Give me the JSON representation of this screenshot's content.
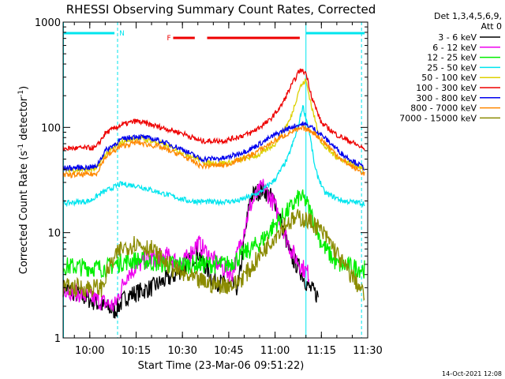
{
  "chart_data": {
    "type": "line",
    "title": "RHESSI Observing Summary Count Rates, Corrected",
    "xlabel": "Start Time (23-Mar-06 09:51:22)",
    "ylabel_main": "Corrected Count Rate (s",
    "ylabel_sup1": "-1",
    "ylabel_mid": " detector",
    "ylabel_sup2": "-1",
    "ylabel_end": ")",
    "y_scale": "log",
    "ylim": [
      1,
      1000
    ],
    "xlim": [
      "09:51:22",
      "11:30:00"
    ],
    "x_ticks": [
      "10:00",
      "10:15",
      "10:30",
      "10:45",
      "11:00",
      "11:15",
      "11:30"
    ],
    "y_ticks": [
      "1",
      "10",
      "100",
      "1000"
    ],
    "legend_header": [
      "Det 1,3,4,5,6,9,",
      "Att 0"
    ],
    "legend_position": "right",
    "timestamp": "14-Oct-2021 12:08",
    "status_bars": [
      {
        "label": "N",
        "color": "#00e5ee",
        "segments": [
          [
            "09:51:22",
            "10:08"
          ],
          [
            "11:10",
            "11:29"
          ]
        ]
      },
      {
        "label": "F",
        "color": "#ee0000",
        "segments": [
          [
            "10:27",
            "10:34"
          ],
          [
            "10:38",
            "11:08"
          ]
        ]
      }
    ],
    "vertical_markers": [
      {
        "time": "09:51:30",
        "style": "solid",
        "color": "#00e5ee"
      },
      {
        "time": "10:09",
        "style": "dashed",
        "color": "#00e5ee"
      },
      {
        "time": "11:10",
        "style": "solid",
        "color": "#00e5ee"
      },
      {
        "time": "11:28",
        "style": "dashed",
        "color": "#00e5ee"
      }
    ],
    "series": [
      {
        "name": "3 - 6 keV",
        "color": "#000000",
        "points": [
          [
            "09:51:22",
            3.0
          ],
          [
            "10:08",
            1.8
          ],
          [
            "10:12",
            2.5
          ],
          [
            "10:20",
            3.0
          ],
          [
            "10:28",
            4.0
          ],
          [
            "10:35",
            6.5
          ],
          [
            "10:40",
            3.5
          ],
          [
            "10:48",
            3.0
          ],
          [
            "10:52",
            22
          ],
          [
            "10:56",
            26
          ],
          [
            "11:00",
            20
          ],
          [
            "11:05",
            6
          ],
          [
            "11:08",
            4.5
          ],
          [
            "11:11",
            3.0
          ],
          [
            "11:14",
            2.5
          ]
        ]
      },
      {
        "name": "6 - 12 keV",
        "color": "#ee00ee",
        "points": [
          [
            "09:51:22",
            3.0
          ],
          [
            "10:08",
            2.0
          ],
          [
            "10:12",
            4.0
          ],
          [
            "10:18",
            5.5
          ],
          [
            "10:25",
            6.0
          ],
          [
            "10:30",
            5.0
          ],
          [
            "10:35",
            8.0
          ],
          [
            "10:40",
            5.5
          ],
          [
            "10:46",
            4.0
          ],
          [
            "10:52",
            18
          ],
          [
            "10:56",
            28
          ],
          [
            "11:00",
            18
          ],
          [
            "11:05",
            7
          ],
          [
            "11:08",
            5
          ],
          [
            "11:11",
            4
          ]
        ]
      },
      {
        "name": "12 - 25 keV",
        "color": "#00ee00",
        "points": [
          [
            "09:51:22",
            4.8
          ],
          [
            "10:05",
            4.6
          ],
          [
            "10:10",
            5.2
          ],
          [
            "10:15",
            5.5
          ],
          [
            "10:25",
            5.0
          ],
          [
            "10:35",
            5.0
          ],
          [
            "10:45",
            5.0
          ],
          [
            "10:55",
            8.0
          ],
          [
            "11:00",
            12
          ],
          [
            "11:05",
            17
          ],
          [
            "11:08",
            22
          ],
          [
            "11:10",
            20
          ],
          [
            "11:13",
            12
          ],
          [
            "11:15",
            8
          ],
          [
            "11:20",
            5
          ],
          [
            "11:29",
            4.5
          ]
        ]
      },
      {
        "name": "25 - 50 keV",
        "color": "#00e5ee",
        "points": [
          [
            "09:51:22",
            19
          ],
          [
            "10:00",
            20
          ],
          [
            "10:04",
            24
          ],
          [
            "10:10",
            29
          ],
          [
            "10:15",
            28
          ],
          [
            "10:25",
            23
          ],
          [
            "10:32",
            20
          ],
          [
            "10:40",
            19.5
          ],
          [
            "10:48",
            20
          ],
          [
            "10:55",
            24
          ],
          [
            "11:00",
            32
          ],
          [
            "11:04",
            50
          ],
          [
            "11:07",
            90
          ],
          [
            "11:09",
            160
          ],
          [
            "11:11",
            95
          ],
          [
            "11:13",
            40
          ],
          [
            "11:16",
            24
          ],
          [
            "11:22",
            20
          ],
          [
            "11:29",
            19
          ]
        ]
      },
      {
        "name": "50 - 100 keV",
        "color": "#ddd000",
        "points": [
          [
            "09:51:22",
            39
          ],
          [
            "10:02",
            40
          ],
          [
            "10:05",
            55
          ],
          [
            "10:10",
            72
          ],
          [
            "10:15",
            80
          ],
          [
            "10:22",
            72
          ],
          [
            "10:30",
            58
          ],
          [
            "10:38",
            46
          ],
          [
            "10:45",
            46
          ],
          [
            "10:55",
            55
          ],
          [
            "11:00",
            70
          ],
          [
            "11:05",
            120
          ],
          [
            "11:08",
            240
          ],
          [
            "11:10",
            280
          ],
          [
            "11:12",
            150
          ],
          [
            "11:15",
            70
          ],
          [
            "11:20",
            52
          ],
          [
            "11:25",
            45
          ],
          [
            "11:29",
            40
          ]
        ]
      },
      {
        "name": "100 - 300 keV",
        "color": "#ee0000",
        "points": [
          [
            "09:51:22",
            63
          ],
          [
            "10:02",
            64
          ],
          [
            "10:05",
            88
          ],
          [
            "10:10",
            105
          ],
          [
            "10:15",
            115
          ],
          [
            "10:22",
            102
          ],
          [
            "10:30",
            88
          ],
          [
            "10:36",
            74
          ],
          [
            "10:44",
            75
          ],
          [
            "10:52",
            88
          ],
          [
            "10:58",
            115
          ],
          [
            "11:02",
            160
          ],
          [
            "11:05",
            240
          ],
          [
            "11:08",
            350
          ],
          [
            "11:10",
            330
          ],
          [
            "11:12",
            190
          ],
          [
            "11:15",
            110
          ],
          [
            "11:20",
            85
          ],
          [
            "11:25",
            72
          ],
          [
            "11:29",
            62
          ]
        ]
      },
      {
        "name": "300 - 800 keV",
        "color": "#0000ee",
        "points": [
          [
            "09:51:22",
            41
          ],
          [
            "10:02",
            42
          ],
          [
            "10:05",
            60
          ],
          [
            "10:10",
            76
          ],
          [
            "10:15",
            83
          ],
          [
            "10:22",
            76
          ],
          [
            "10:30",
            62
          ],
          [
            "10:36",
            50
          ],
          [
            "10:44",
            51
          ],
          [
            "10:52",
            62
          ],
          [
            "11:00",
            85
          ],
          [
            "11:05",
            100
          ],
          [
            "11:09",
            108
          ],
          [
            "11:12",
            100
          ],
          [
            "11:16",
            80
          ],
          [
            "11:22",
            55
          ],
          [
            "11:29",
            41
          ]
        ]
      },
      {
        "name": "800 - 7000 keV",
        "color": "#ff8800",
        "points": [
          [
            "09:51:22",
            35
          ],
          [
            "10:02",
            36
          ],
          [
            "10:05",
            52
          ],
          [
            "10:10",
            66
          ],
          [
            "10:15",
            72
          ],
          [
            "10:22",
            66
          ],
          [
            "10:30",
            54
          ],
          [
            "10:36",
            43
          ],
          [
            "10:44",
            44
          ],
          [
            "10:52",
            54
          ],
          [
            "11:00",
            75
          ],
          [
            "11:05",
            90
          ],
          [
            "11:09",
            98
          ],
          [
            "11:12",
            92
          ],
          [
            "11:16",
            72
          ],
          [
            "11:22",
            48
          ],
          [
            "11:29",
            36
          ]
        ]
      },
      {
        "name": "7000 - 15000 keV",
        "color": "#8b8b00",
        "points": [
          [
            "09:51:22",
            3.0
          ],
          [
            "10:04",
            3.0
          ],
          [
            "10:06",
            4.5
          ],
          [
            "10:10",
            7
          ],
          [
            "10:15",
            8
          ],
          [
            "10:20",
            7
          ],
          [
            "10:25",
            5
          ],
          [
            "10:30",
            4
          ],
          [
            "10:35",
            3.5
          ],
          [
            "10:40",
            3.2
          ],
          [
            "10:47",
            3.2
          ],
          [
            "10:52",
            4.5
          ],
          [
            "10:58",
            8
          ],
          [
            "11:03",
            12
          ],
          [
            "11:08",
            14
          ],
          [
            "11:13",
            12
          ],
          [
            "11:18",
            8
          ],
          [
            "11:22",
            5
          ],
          [
            "11:26",
            3.5
          ],
          [
            "11:29",
            2.5
          ]
        ]
      }
    ]
  }
}
